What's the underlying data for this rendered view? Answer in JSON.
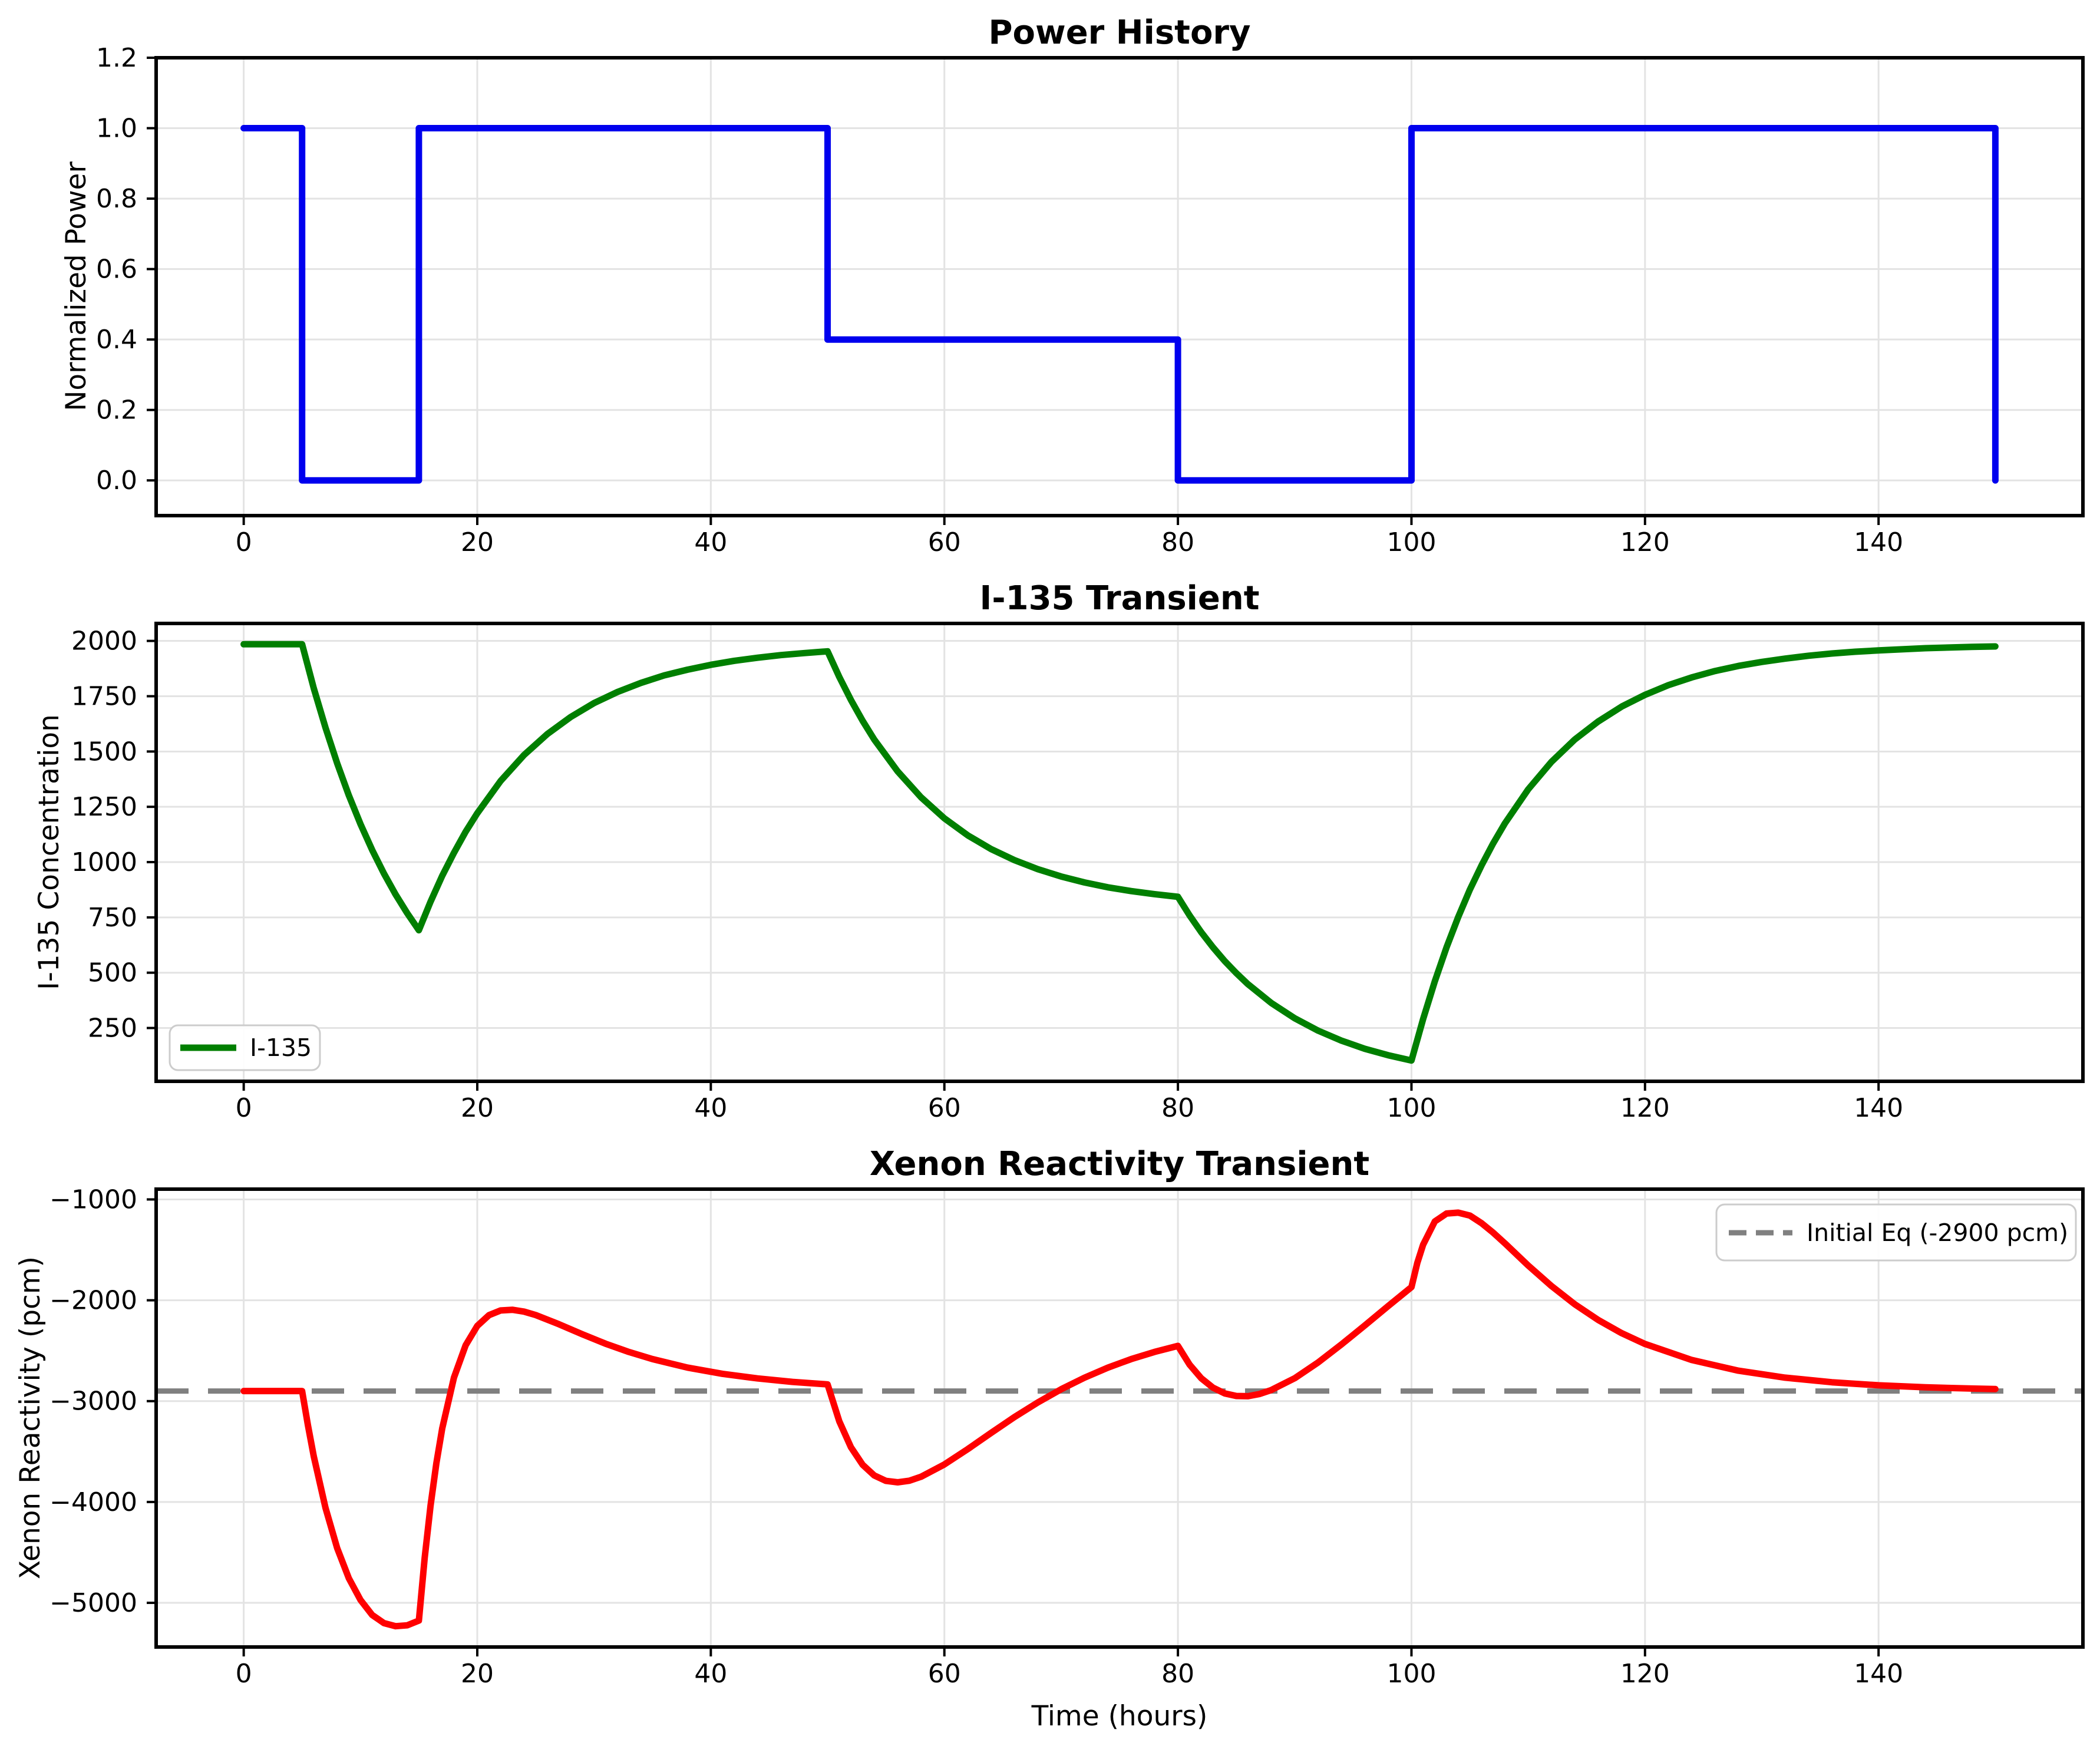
{
  "figure": {
    "background": "#FFFFFF",
    "grid_color": "#E3E3E3",
    "spine_color": "#000000"
  },
  "chart_data": [
    {
      "type": "line",
      "title": "Power History",
      "xlabel": "",
      "ylabel": "Normalized Power",
      "xlim": [
        -7.5,
        157.5
      ],
      "ylim": [
        -0.1,
        1.2
      ],
      "grid": true,
      "xticks": [
        0,
        20,
        40,
        60,
        80,
        100,
        120,
        140
      ],
      "xtick_labels": [
        "0",
        "20",
        "40",
        "60",
        "80",
        "100",
        "120",
        "140"
      ],
      "yticks": [
        0.0,
        0.2,
        0.4,
        0.6,
        0.8,
        1.0,
        1.2
      ],
      "ytick_labels": [
        "0.0",
        "0.2",
        "0.4",
        "0.6",
        "0.8",
        "1.0",
        "1.2"
      ],
      "series": [
        {
          "name": "normalized-power",
          "color": "#0000EE",
          "linewidth": 11,
          "points": [
            [
              0,
              1
            ],
            [
              5,
              1
            ],
            [
              5,
              0
            ],
            [
              15,
              0
            ],
            [
              15,
              1
            ],
            [
              50,
              1
            ],
            [
              50,
              0.4
            ],
            [
              80,
              0.4
            ],
            [
              80,
              0
            ],
            [
              100,
              0
            ],
            [
              100,
              1
            ],
            [
              150,
              1
            ],
            [
              150,
              0
            ]
          ]
        }
      ]
    },
    {
      "type": "line",
      "title": "I-135 Transient",
      "xlabel": "",
      "ylabel": "I-135 Concentration",
      "xlim": [
        -7.5,
        157.5
      ],
      "ylim": [
        9,
        2079
      ],
      "grid": true,
      "xticks": [
        0,
        20,
        40,
        60,
        80,
        100,
        120,
        140
      ],
      "xtick_labels": [
        "0",
        "20",
        "40",
        "60",
        "80",
        "100",
        "120",
        "140"
      ],
      "yticks": [
        250,
        500,
        750,
        1000,
        1250,
        1500,
        1750,
        2000
      ],
      "ytick_labels": [
        "250",
        "500",
        "750",
        "1000",
        "1250",
        "1500",
        "1750",
        "2000"
      ],
      "legend": {
        "label": "I-135",
        "position": "lower-left"
      },
      "series": [
        {
          "name": "iodine-135",
          "color": "#007F00",
          "linewidth": 11,
          "points": [
            [
              0,
              1985
            ],
            [
              5,
              1985
            ],
            [
              6,
              1786
            ],
            [
              7,
              1608
            ],
            [
              8,
              1447
            ],
            [
              9,
              1302
            ],
            [
              10,
              1172
            ],
            [
              11,
              1055
            ],
            [
              12,
              949
            ],
            [
              13,
              854
            ],
            [
              14,
              769
            ],
            [
              15,
              692
            ],
            [
              16,
              821
            ],
            [
              17,
              938
            ],
            [
              18,
              1042
            ],
            [
              19,
              1137
            ],
            [
              20,
              1221
            ],
            [
              22,
              1367
            ],
            [
              24,
              1484
            ],
            [
              26,
              1579
            ],
            [
              28,
              1656
            ],
            [
              30,
              1719
            ],
            [
              32,
              1769
            ],
            [
              34,
              1810
            ],
            [
              36,
              1844
            ],
            [
              38,
              1870
            ],
            [
              40,
              1892
            ],
            [
              42,
              1910
            ],
            [
              44,
              1924
            ],
            [
              46,
              1936
            ],
            [
              48,
              1945
            ],
            [
              50,
              1953
            ],
            [
              51,
              1837
            ],
            [
              52,
              1733
            ],
            [
              53,
              1639
            ],
            [
              54,
              1554
            ],
            [
              56,
              1410
            ],
            [
              58,
              1293
            ],
            [
              60,
              1198
            ],
            [
              62,
              1121
            ],
            [
              64,
              1059
            ],
            [
              66,
              1009
            ],
            [
              68,
              968
            ],
            [
              70,
              935
            ],
            [
              72,
              908
            ],
            [
              74,
              886
            ],
            [
              76,
              869
            ],
            [
              78,
              855
            ],
            [
              80,
              843
            ],
            [
              81,
              759
            ],
            [
              82,
              683
            ],
            [
              83,
              615
            ],
            [
              84,
              553
            ],
            [
              85,
              498
            ],
            [
              86,
              448
            ],
            [
              88,
              363
            ],
            [
              90,
              294
            ],
            [
              92,
              238
            ],
            [
              94,
              193
            ],
            [
              96,
              156
            ],
            [
              98,
              127
            ],
            [
              100,
              103
            ],
            [
              101,
              291
            ],
            [
              102,
              461
            ],
            [
              103,
              614
            ],
            [
              104,
              751
            ],
            [
              105,
              875
            ],
            [
              106,
              985
            ],
            [
              107,
              1085
            ],
            [
              108,
              1175
            ],
            [
              110,
              1329
            ],
            [
              112,
              1454
            ],
            [
              114,
              1555
            ],
            [
              116,
              1636
            ],
            [
              118,
              1703
            ],
            [
              120,
              1756
            ],
            [
              122,
              1800
            ],
            [
              124,
              1835
            ],
            [
              126,
              1864
            ],
            [
              128,
              1887
            ],
            [
              130,
              1905
            ],
            [
              132,
              1920
            ],
            [
              134,
              1933
            ],
            [
              136,
              1943
            ],
            [
              138,
              1951
            ],
            [
              140,
              1957
            ],
            [
              144,
              1967
            ],
            [
              148,
              1973
            ],
            [
              150,
              1975
            ]
          ]
        }
      ]
    },
    {
      "type": "line",
      "title": "Xenon Reactivity Transient",
      "xlabel": "Time (hours)",
      "ylabel": "Xenon Reactivity (pcm)",
      "xlim": [
        -7.5,
        157.5
      ],
      "ylim": [
        -5438,
        -898
      ],
      "grid": true,
      "xticks": [
        0,
        20,
        40,
        60,
        80,
        100,
        120,
        140
      ],
      "xtick_labels": [
        "0",
        "20",
        "40",
        "60",
        "80",
        "100",
        "120",
        "140"
      ],
      "yticks": [
        -1000,
        -2000,
        -3000,
        -4000,
        -5000
      ],
      "ytick_labels": [
        "−1000",
        "−2000",
        "−3000",
        "−4000",
        "−5000"
      ],
      "legend": {
        "label": "Initial Eq (-2900 pcm)",
        "position": "upper-right"
      },
      "reference_line": {
        "name": "initial-equilibrium",
        "value": -2900,
        "color": "#808080",
        "linewidth": 9,
        "dash": [
          55,
          33
        ]
      },
      "series": [
        {
          "name": "xenon-reactivity",
          "color": "#FF0000",
          "linewidth": 11,
          "points": [
            [
              0,
              -2900
            ],
            [
              5,
              -2900
            ],
            [
              5.5,
              -3239
            ],
            [
              6,
              -3547
            ],
            [
              7,
              -4058
            ],
            [
              8,
              -4457
            ],
            [
              9,
              -4756
            ],
            [
              10,
              -4971
            ],
            [
              11,
              -5120
            ],
            [
              12,
              -5201
            ],
            [
              13,
              -5232
            ],
            [
              14,
              -5223
            ],
            [
              15,
              -5176
            ],
            [
              15.5,
              -4551
            ],
            [
              16,
              -4036
            ],
            [
              16.5,
              -3615
            ],
            [
              17,
              -3271
            ],
            [
              18,
              -2767
            ],
            [
              19,
              -2447
            ],
            [
              20,
              -2254
            ],
            [
              21,
              -2148
            ],
            [
              22,
              -2101
            ],
            [
              23,
              -2094
            ],
            [
              24,
              -2112
            ],
            [
              25,
              -2146
            ],
            [
              27,
              -2238
            ],
            [
              29,
              -2337
            ],
            [
              31,
              -2431
            ],
            [
              33,
              -2513
            ],
            [
              35,
              -2583
            ],
            [
              38,
              -2667
            ],
            [
              41,
              -2729
            ],
            [
              44,
              -2775
            ],
            [
              47,
              -2809
            ],
            [
              50,
              -2834
            ],
            [
              51,
              -3200
            ],
            [
              52,
              -3458
            ],
            [
              53,
              -3631
            ],
            [
              54,
              -3737
            ],
            [
              55,
              -3791
            ],
            [
              56,
              -3805
            ],
            [
              57,
              -3789
            ],
            [
              58,
              -3750
            ],
            [
              60,
              -3628
            ],
            [
              62,
              -3476
            ],
            [
              64,
              -3315
            ],
            [
              66,
              -3158
            ],
            [
              68,
              -3013
            ],
            [
              70,
              -2882
            ],
            [
              72,
              -2768
            ],
            [
              74,
              -2668
            ],
            [
              76,
              -2583
            ],
            [
              78,
              -2512
            ],
            [
              80,
              -2452
            ],
            [
              81,
              -2638
            ],
            [
              82,
              -2773
            ],
            [
              83,
              -2866
            ],
            [
              84,
              -2923
            ],
            [
              85,
              -2949
            ],
            [
              86,
              -2951
            ],
            [
              87,
              -2929
            ],
            [
              88,
              -2890
            ],
            [
              90,
              -2773
            ],
            [
              92,
              -2617
            ],
            [
              94,
              -2438
            ],
            [
              96,
              -2250
            ],
            [
              98,
              -2058
            ],
            [
              100,
              -1869
            ],
            [
              100.5,
              -1629
            ],
            [
              101,
              -1448
            ],
            [
              102,
              -1218
            ],
            [
              103,
              -1140
            ],
            [
              104,
              -1131
            ],
            [
              105,
              -1160
            ],
            [
              106,
              -1235
            ],
            [
              107,
              -1330
            ],
            [
              108,
              -1435
            ],
            [
              110,
              -1655
            ],
            [
              112,
              -1860
            ],
            [
              114,
              -2041
            ],
            [
              116,
              -2196
            ],
            [
              118,
              -2326
            ],
            [
              120,
              -2433
            ],
            [
              124,
              -2592
            ],
            [
              128,
              -2698
            ],
            [
              132,
              -2767
            ],
            [
              136,
              -2813
            ],
            [
              140,
              -2843
            ],
            [
              144,
              -2863
            ],
            [
              148,
              -2875
            ],
            [
              150,
              -2880
            ]
          ]
        }
      ]
    }
  ]
}
